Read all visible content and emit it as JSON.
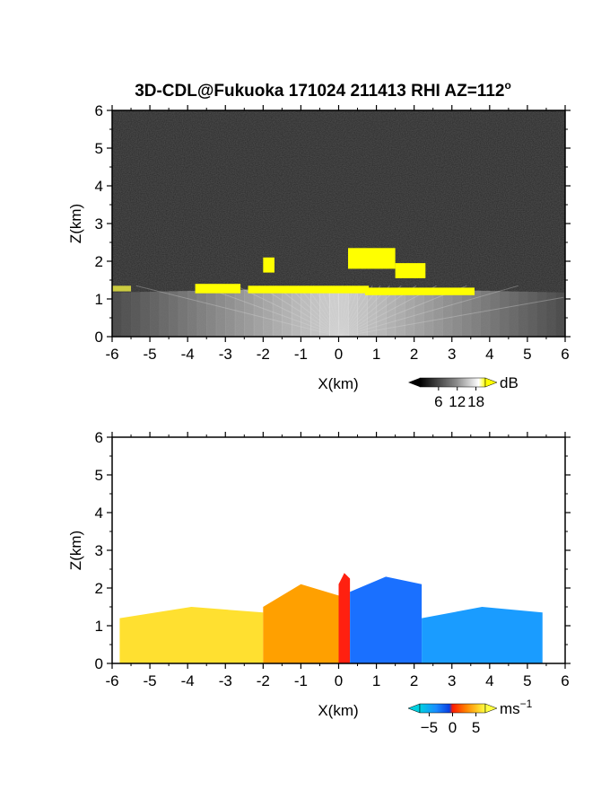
{
  "figure": {
    "title": "3D-CDL@Fukuoka 171024 211413 RHI AZ=112",
    "title_superscript": "o"
  },
  "chart_data": [
    {
      "type": "heatmap",
      "panel": "top",
      "xlabel": "X(km)",
      "ylabel": "Z(km)",
      "xlim": [
        -6,
        6
      ],
      "ylim": [
        0,
        6
      ],
      "xticks": [
        "-6",
        "-5",
        "-4",
        "-3",
        "-2",
        "-1",
        "0",
        "1",
        "2",
        "3",
        "4",
        "5",
        "6"
      ],
      "yticks": [
        "0",
        "1",
        "2",
        "3",
        "4",
        "5",
        "6"
      ],
      "background": "#2a2a2a",
      "colorbar": {
        "unit": "dB",
        "tick_values": [
          6,
          12,
          18
        ],
        "tick_labels": [
          "6",
          "12",
          "18"
        ],
        "range": [
          0,
          21
        ],
        "low_color": "#000000",
        "high_color": "#ffff00"
      },
      "signal_layer_top_km": 1.3,
      "signal_x_range_km": [
        -6,
        6
      ],
      "high_signal_regions": [
        {
          "x": [
            -3.8,
            -2.6
          ],
          "z": [
            1.15,
            1.4
          ],
          "level_db": 19
        },
        {
          "x": [
            -2.0,
            -1.7
          ],
          "z": [
            1.7,
            2.1
          ],
          "level_db": 19
        },
        {
          "x": [
            -2.4,
            0.8
          ],
          "z": [
            1.15,
            1.35
          ],
          "level_db": 19
        },
        {
          "x": [
            0.25,
            1.5
          ],
          "z": [
            1.8,
            2.35
          ],
          "level_db": 19
        },
        {
          "x": [
            1.5,
            2.3
          ],
          "z": [
            1.55,
            1.95
          ],
          "level_db": 19
        },
        {
          "x": [
            0.7,
            3.6
          ],
          "z": [
            1.1,
            1.3
          ],
          "level_db": 19
        },
        {
          "x": [
            -6.0,
            -5.5
          ],
          "z": [
            1.2,
            1.35
          ],
          "level_db": 12
        }
      ]
    },
    {
      "type": "heatmap",
      "panel": "bottom",
      "xlabel": "X(km)",
      "ylabel": "Z(km)",
      "xlim": [
        -6,
        6
      ],
      "ylim": [
        0,
        6
      ],
      "xticks": [
        "-6",
        "-5",
        "-4",
        "-3",
        "-2",
        "-1",
        "0",
        "1",
        "2",
        "3",
        "4",
        "5",
        "6"
      ],
      "yticks": [
        "0",
        "1",
        "2",
        "3",
        "4",
        "5",
        "6"
      ],
      "background": "#ffffff",
      "colorbar": {
        "unit": "ms",
        "unit_superscript": "−1",
        "tick_values": [
          -5,
          0,
          5
        ],
        "tick_labels": [
          "−5",
          "0",
          "5"
        ],
        "range": [
          -7,
          7
        ],
        "low_color": "#00d0e0",
        "high_color": "#ffff40"
      },
      "velocity_regions": [
        {
          "x": [
            -5.8,
            -2.0
          ],
          "z_top": [
            1.2,
            1.5
          ],
          "velocity_ms": 6
        },
        {
          "x": [
            -2.0,
            0.0
          ],
          "z_top": [
            1.5,
            2.1
          ],
          "velocity_ms": 3
        },
        {
          "x": [
            0.0,
            0.3
          ],
          "z_top": [
            2.1,
            2.4
          ],
          "velocity_ms": 0
        },
        {
          "x": [
            0.3,
            2.2
          ],
          "z_top": [
            1.9,
            2.3
          ],
          "velocity_ms": -4
        },
        {
          "x": [
            2.2,
            5.4
          ],
          "z_top": [
            1.2,
            1.5
          ],
          "velocity_ms": -5
        }
      ]
    }
  ]
}
